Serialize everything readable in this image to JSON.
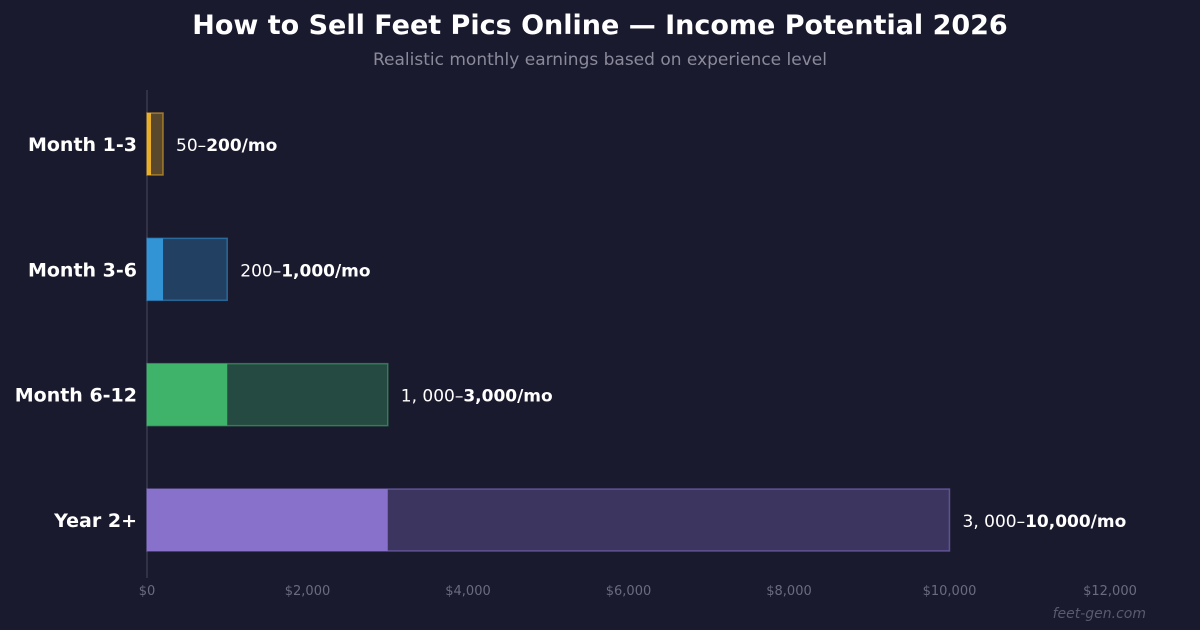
{
  "chart_data": {
    "type": "bar",
    "orientation": "horizontal",
    "title": "How to Sell Feet Pics Online — Income Potential 2026",
    "subtitle": "Realistic monthly earnings based on experience level",
    "xlim": [
      0,
      12000
    ],
    "x_ticks": [
      {
        "value": 0,
        "label": "$0"
      },
      {
        "value": 2000,
        "label": "$2,000"
      },
      {
        "value": 4000,
        "label": "$4,000"
      },
      {
        "value": 6000,
        "label": "$6,000"
      },
      {
        "value": 8000,
        "label": "$8,000"
      },
      {
        "value": 10000,
        "label": "$10,000"
      },
      {
        "value": 12000,
        "label": "$12,000"
      }
    ],
    "grid": false,
    "categories": [
      "Month 1-3",
      "Month 3-6",
      "Month 6-12",
      "Year 2+"
    ],
    "ranges": [
      {
        "low": 50,
        "high": 200,
        "label_low": "50–",
        "label_high": "200/mo",
        "color": "#f0b429"
      },
      {
        "low": 200,
        "high": 1000,
        "label_low": "200–",
        "label_high": "1,000/mo",
        "color": "#3498db"
      },
      {
        "low": 1000,
        "high": 3000,
        "label_low": "1, 000–",
        "label_high": "3,000/mo",
        "color": "#40b86c"
      },
      {
        "low": 3000,
        "high": 10000,
        "label_low": "3, 000–",
        "label_high": "10,000/mo",
        "color": "#8b75d0"
      }
    ]
  },
  "watermark": "feet-gen.com"
}
